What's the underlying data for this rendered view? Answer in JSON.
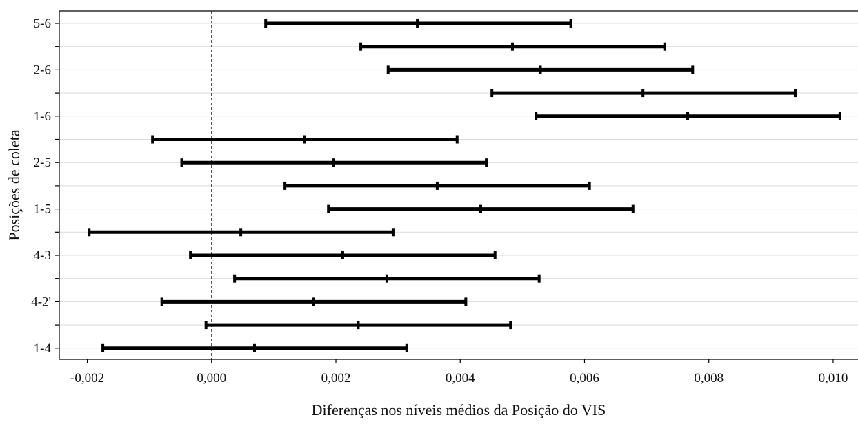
{
  "chart_data": {
    "type": "errorbar",
    "orientation": "horizontal",
    "title": "",
    "xlabel": "Diferenças nos níveis médios da Posição do VIS",
    "ylabel": "Posições de coleta",
    "xlim": [
      -0.00245,
      0.0104
    ],
    "x_ticks": [
      -0.002,
      0.0,
      0.002,
      0.004,
      0.006,
      0.008,
      0.01
    ],
    "x_tick_labels": [
      "-0,002",
      "0,000",
      "0,002",
      "0,004",
      "0,006",
      "0,008",
      "0,010"
    ],
    "y_categories": [
      "5-6",
      "",
      "2-6",
      "",
      "1-6",
      "",
      "2-5",
      "",
      "1-5",
      "",
      "4-3",
      "",
      "4-2'",
      "",
      "1-4"
    ],
    "intervals": [
      {
        "lower": 0.00087,
        "mean": 0.00331,
        "upper": 0.00578
      },
      {
        "lower": 0.0024,
        "mean": 0.00484,
        "upper": 0.00729
      },
      {
        "lower": 0.00284,
        "mean": 0.00529,
        "upper": 0.00774
      },
      {
        "lower": 0.00451,
        "mean": 0.00694,
        "upper": 0.00939
      },
      {
        "lower": 0.00522,
        "mean": 0.00766,
        "upper": 0.01011
      },
      {
        "lower": -0.00095,
        "mean": 0.0015,
        "upper": 0.00395
      },
      {
        "lower": -0.00048,
        "mean": 0.00196,
        "upper": 0.00442
      },
      {
        "lower": 0.00118,
        "mean": 0.00363,
        "upper": 0.00608
      },
      {
        "lower": 0.00188,
        "mean": 0.00433,
        "upper": 0.00678
      },
      {
        "lower": -0.00197,
        "mean": 0.00047,
        "upper": 0.00292
      },
      {
        "lower": -0.00034,
        "mean": 0.00211,
        "upper": 0.00456
      },
      {
        "lower": 0.00037,
        "mean": 0.00282,
        "upper": 0.00527
      },
      {
        "lower": -0.0008,
        "mean": 0.00164,
        "upper": 0.00409
      },
      {
        "lower": -9e-05,
        "mean": 0.00236,
        "upper": 0.00481
      },
      {
        "lower": -0.00175,
        "mean": 0.00069,
        "upper": 0.00314
      }
    ],
    "reference_line": {
      "x": 0.0,
      "style": "dashed"
    },
    "grid": {
      "horizontal": true,
      "vertical": false
    },
    "legend": "none"
  }
}
